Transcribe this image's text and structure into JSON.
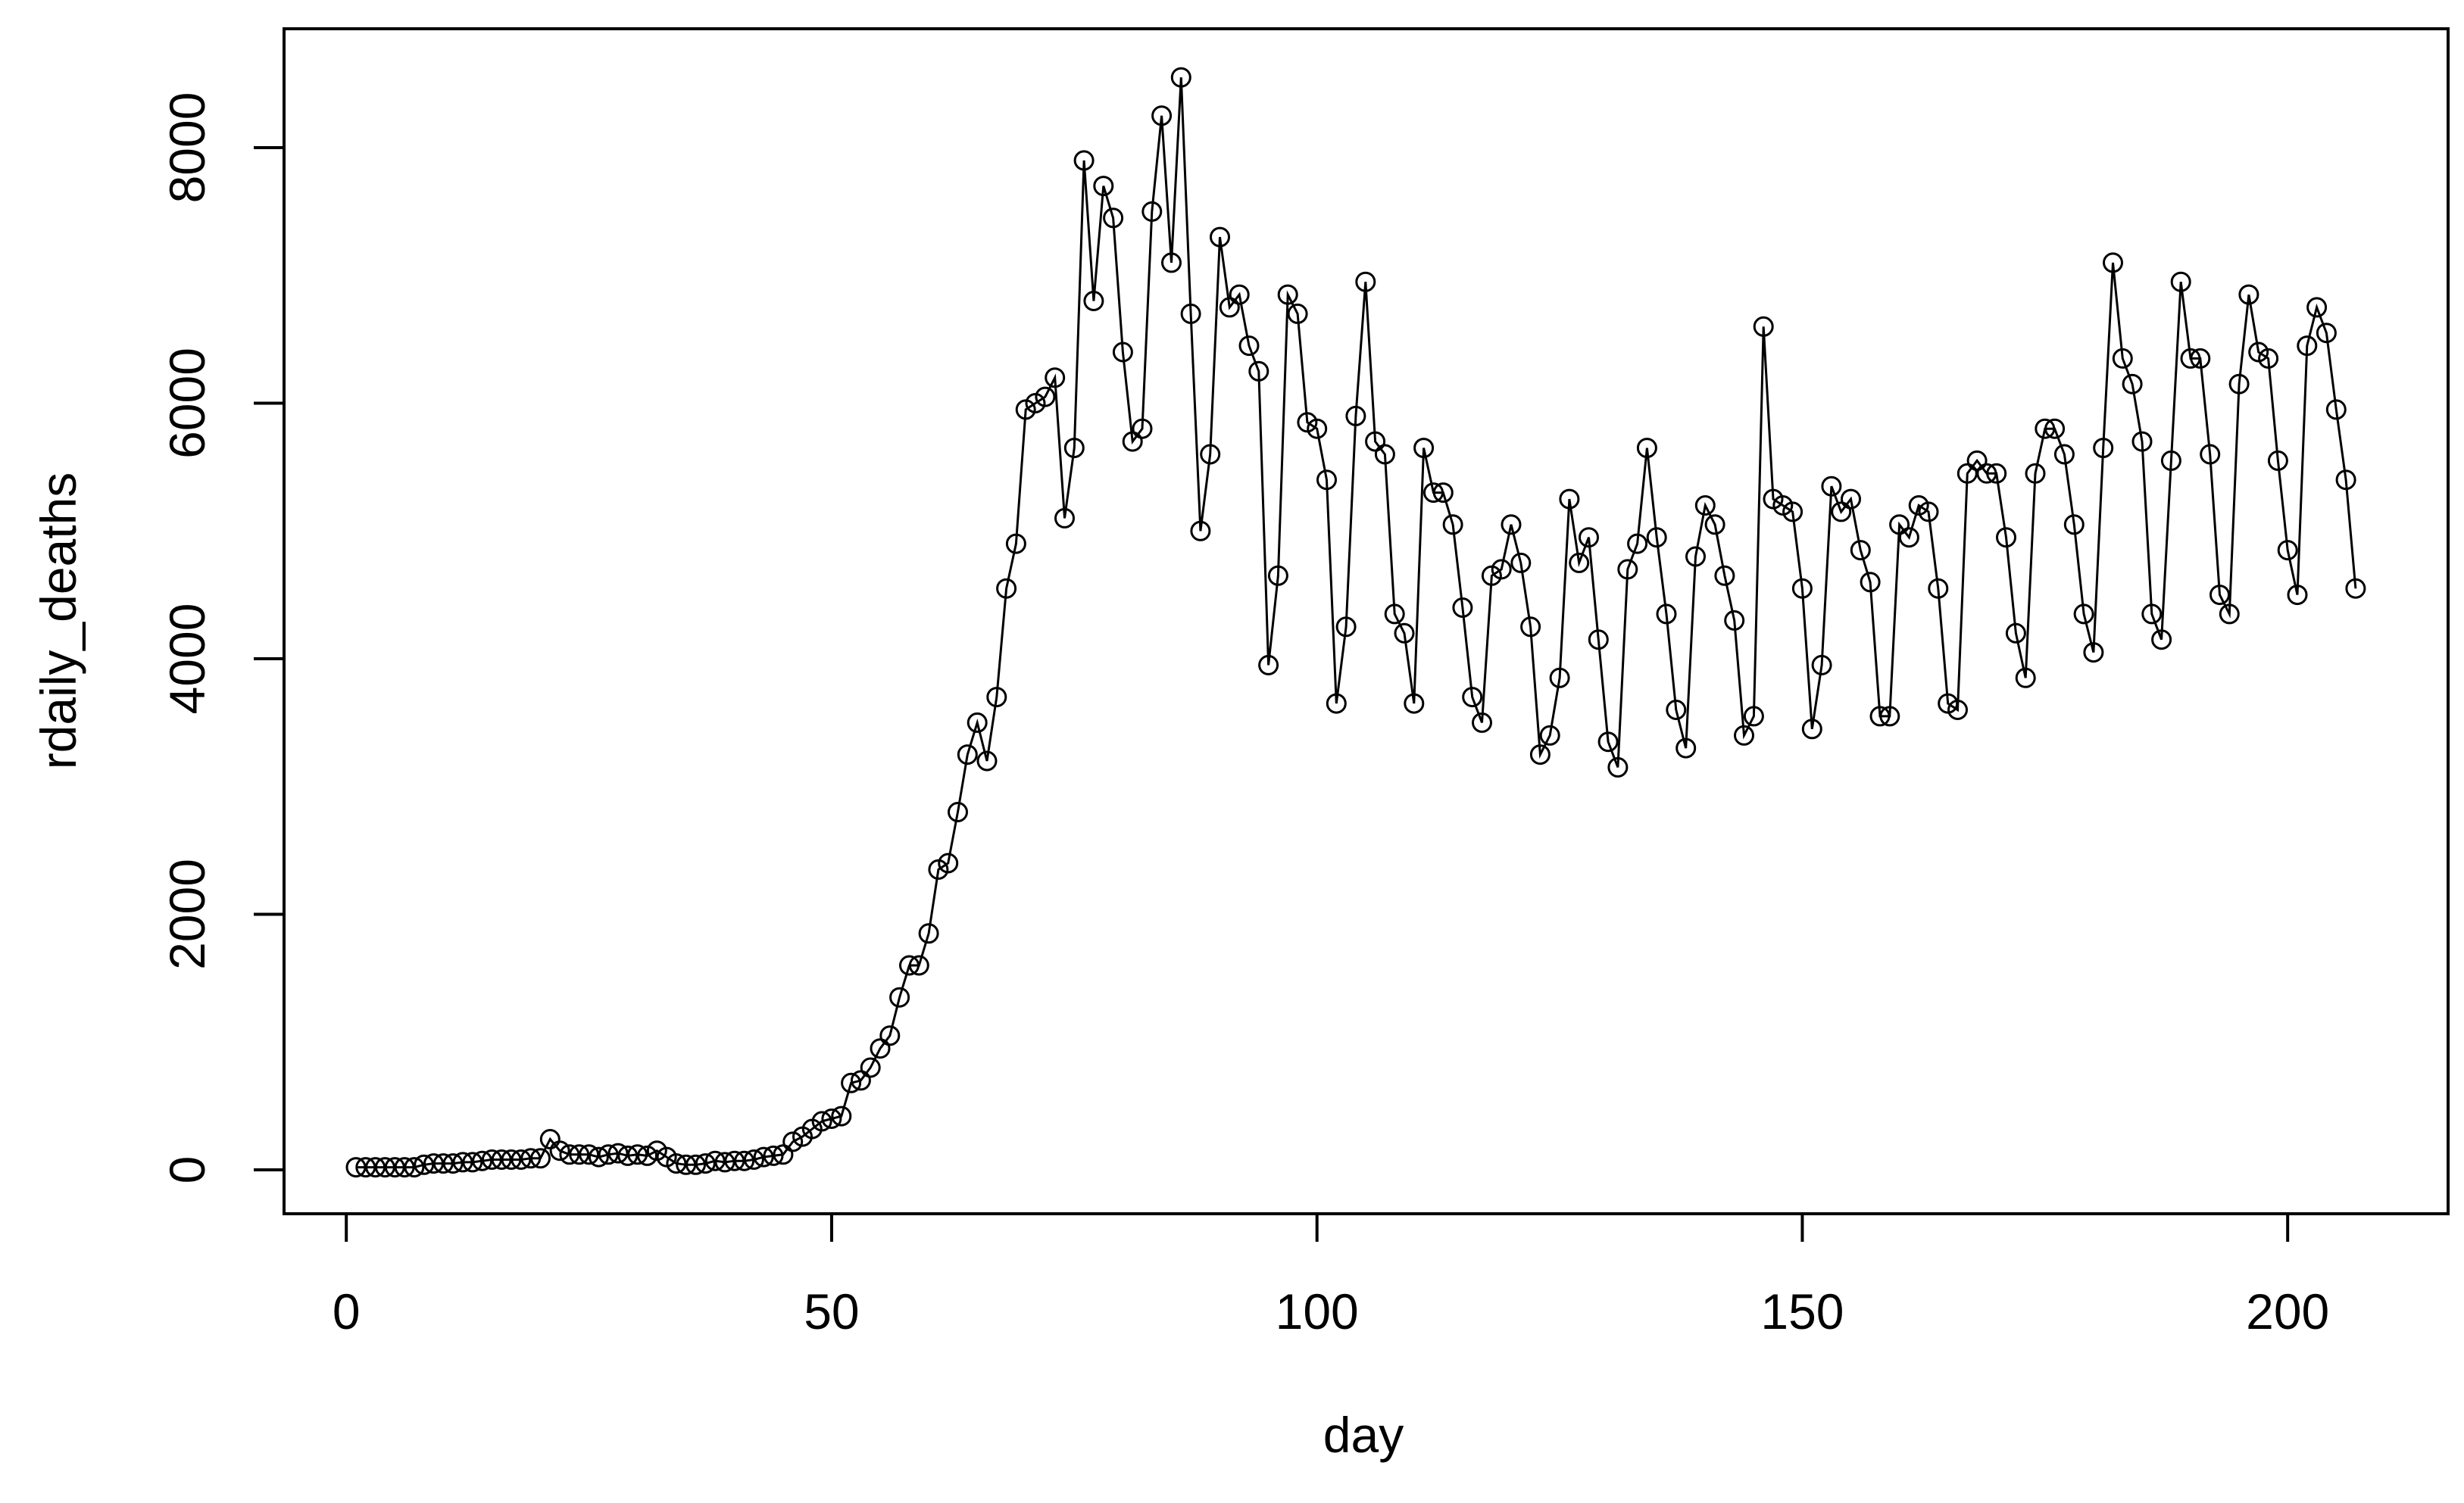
{
  "colors": {
    "line": "#000000",
    "background": "#ffffff"
  },
  "chart_data": {
    "type": "line",
    "title": "",
    "xlabel": "day",
    "ylabel": "rdaily_deaths",
    "xlim": [
      1,
      207
    ],
    "ylim": [
      0,
      8500
    ],
    "x_ticks": [
      "0",
      "50",
      "100",
      "150",
      "200"
    ],
    "y_ticks": [
      "0",
      "2000",
      "4000",
      "6000",
      "8000"
    ],
    "grid": false,
    "legend": "none",
    "markers": "open-circle",
    "x_start": 1,
    "values": [
      20,
      20,
      20,
      20,
      20,
      20,
      20,
      40,
      50,
      50,
      50,
      60,
      60,
      70,
      80,
      80,
      80,
      80,
      90,
      90,
      240,
      150,
      120,
      120,
      120,
      100,
      120,
      130,
      110,
      120,
      110,
      150,
      100,
      50,
      40,
      40,
      50,
      70,
      60,
      70,
      70,
      80,
      100,
      110,
      120,
      220,
      260,
      320,
      380,
      400,
      420,
      680,
      700,
      800,
      950,
      1050,
      1350,
      1600,
      1600,
      1850,
      2350,
      2400,
      2800,
      3250,
      3500,
      3200,
      3700,
      4550,
      4900,
      5950,
      6000,
      6050,
      6200,
      5100,
      5650,
      7900,
      6800,
      7700,
      7450,
      6400,
      5700,
      5800,
      7500,
      8250,
      7100,
      8550,
      6700,
      5000,
      5600,
      7300,
      6750,
      6850,
      6450,
      6250,
      3950,
      4650,
      6850,
      6700,
      5850,
      5800,
      5400,
      3650,
      4250,
      5900,
      6950,
      5700,
      5600,
      4350,
      4200,
      3650,
      5650,
      5300,
      5300,
      5050,
      4400,
      3700,
      3500,
      4650,
      4700,
      5050,
      4750,
      4250,
      3250,
      3400,
      3850,
      5250,
      4750,
      4950,
      4150,
      3350,
      3150,
      4700,
      4900,
      5650,
      4950,
      4350,
      3600,
      3300,
      4800,
      5200,
      5050,
      4650,
      4300,
      3400,
      3550,
      6600,
      5250,
      5200,
      5150,
      4550,
      3450,
      3950,
      5350,
      5150,
      5250,
      4850,
      4600,
      3550,
      3550,
      5050,
      4950,
      5200,
      5150,
      4550,
      3650,
      3600,
      5450,
      5550,
      5450,
      5450,
      4950,
      4200,
      3850,
      5450,
      5800,
      5800,
      5600,
      5050,
      4350,
      4050,
      5650,
      7100,
      6350,
      6150,
      5700,
      4350,
      4150,
      5550,
      6950,
      6350,
      6350,
      5600,
      4500,
      4350,
      6150,
      6850,
      6400,
      6350,
      5550,
      4850,
      4500,
      6450,
      6750,
      6550,
      5950,
      5400,
      4550
    ]
  }
}
